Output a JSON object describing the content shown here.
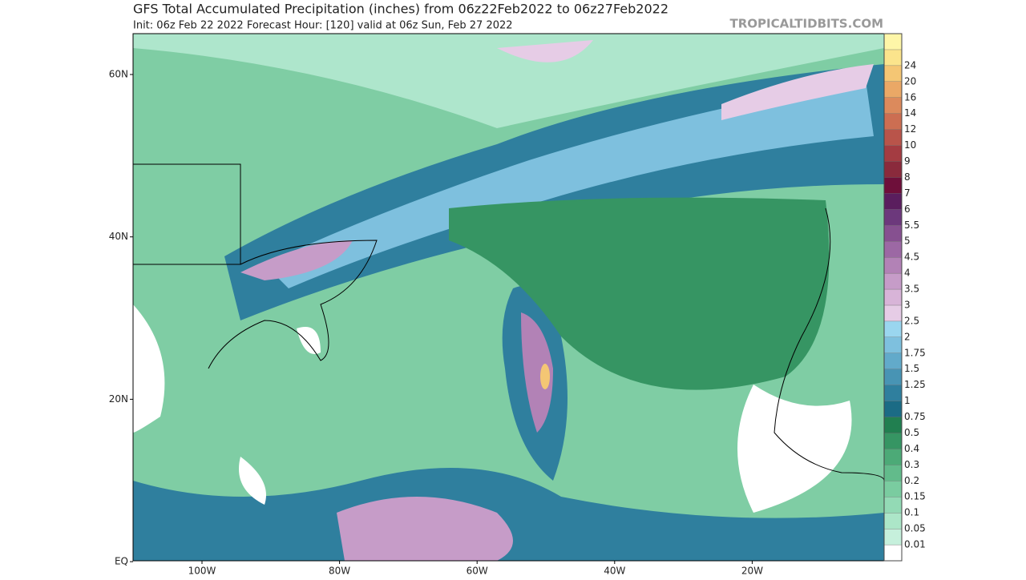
{
  "header": {
    "title": "GFS Total Accumulated Precipitation (inches) from 06z22Feb2022 to 06z27Feb2022",
    "subtitle": "Init: 06z Feb 22 2022   Forecast Hour: [120]   valid at 06z Sun, Feb 27 2022",
    "watermark": "TROPICALTIDBITS.COM"
  },
  "map": {
    "lat_labels": [
      "60N",
      "40N",
      "20N",
      "EQ"
    ],
    "lon_labels": [
      "100W",
      "80W",
      "60W",
      "40W",
      "20W"
    ]
  },
  "colorbar": {
    "levels": [
      0.01,
      0.05,
      0.1,
      0.15,
      0.2,
      0.3,
      0.4,
      0.5,
      0.75,
      1,
      1.25,
      1.5,
      1.75,
      2,
      2.5,
      3,
      3.5,
      4,
      4.5,
      5,
      5.5,
      6,
      7,
      8,
      9,
      10,
      12,
      14,
      16,
      20,
      24
    ],
    "colors": [
      "#ffffff",
      "#c6f0dc",
      "#ace6c8",
      "#93dab5",
      "#7acc a0",
      "#62bb8b",
      "#4caa77",
      "#369563",
      "#217f50",
      "#1b6b85",
      "#2f7f9e",
      "#4894b4",
      "#62aaca",
      "#7ec0de",
      "#9ad6ef",
      "#e6cce6",
      "#d8b4d8",
      "#c69cc8",
      "#b282b6",
      "#9c68a4",
      "#865090",
      "#6c387c",
      "#5a1e5e",
      "#6e0f3a",
      "#8a2a3c",
      "#a43c42",
      "#b9544a",
      "#cc6e52",
      "#dc8a5c",
      "#eaa866",
      "#f4c674",
      "#fbe48c",
      "#fef6a8"
    ]
  }
}
